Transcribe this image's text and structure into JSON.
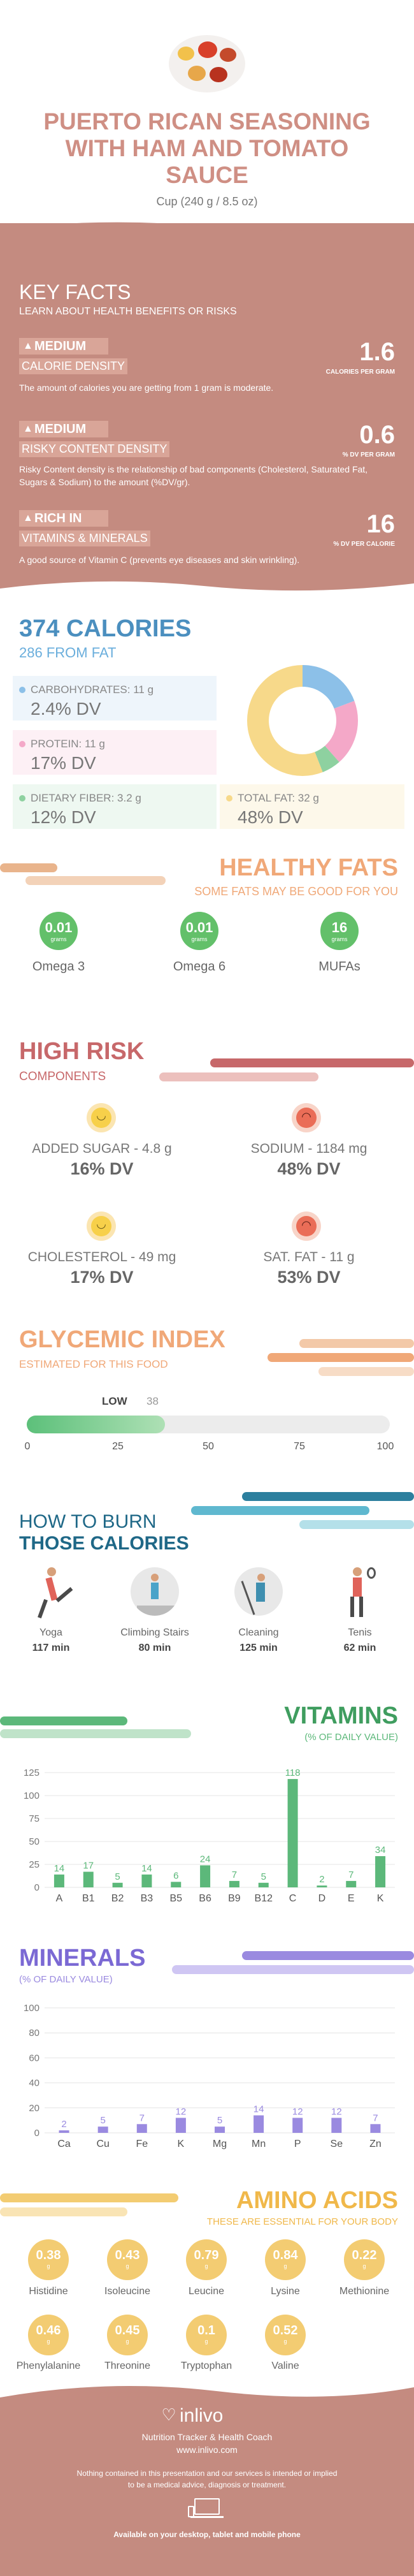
{
  "header": {
    "title_line1": "PUERTO RICAN SEASONING",
    "title_line2": "WITH HAM AND TOMATO",
    "title_line3": "SAUCE",
    "serving": "Cup (240 g / 8.5 oz)"
  },
  "key_facts": {
    "title": "KEY FACTS",
    "subtitle": "LEARN ABOUT HEALTH BENEFITS OR RISKS",
    "items": [
      {
        "level": "MEDIUM",
        "label": "CALORIE DENSITY",
        "value": "1.6",
        "unit": "CALORIES PER GRAM",
        "desc": "The amount of calories you are getting from 1 gram is moderate."
      },
      {
        "level": "MEDIUM",
        "label": "RISKY CONTENT DENSITY",
        "value": "0.6",
        "unit": "% DV PER GRAM",
        "desc": "Risky Content density is the relationship of bad components (Cholesterol, Saturated Fat, Sugars & Sodium) to the amount (%DV/gr)."
      },
      {
        "level": "RICH IN",
        "label": "VITAMINS & MINERALS",
        "value": "16",
        "unit": "% DV PER CALORIE",
        "desc": "A good source of Vitamin C (prevents eye diseases and skin wrinkling)."
      }
    ]
  },
  "calories": {
    "title": "374 CALORIES",
    "subtitle": "286 FROM FAT",
    "carbs_label": "CARBOHYDRATES: 11 g",
    "carbs_dv": "2.4% DV",
    "protein_label": "PROTEIN: 11 g",
    "protein_dv": "17% DV",
    "fiber_label": "DIETARY FIBER: 3.2 g",
    "fiber_dv": "12% DV",
    "fat_label": "TOTAL FAT: 32 g",
    "fat_dv": "48% DV",
    "donut": [
      {
        "name": "carbs",
        "value": 11,
        "color": "#8cc0e8"
      },
      {
        "name": "protein",
        "value": 11,
        "color": "#f4a8c8"
      },
      {
        "name": "fiber",
        "value": 3.2,
        "color": "#8ed1a0"
      },
      {
        "name": "fat",
        "value": 32,
        "color": "#f7d98a"
      }
    ]
  },
  "healthy_fats": {
    "title": "HEALTHY FATS",
    "subtitle": "SOME FATS MAY BE GOOD FOR YOU",
    "items": [
      {
        "value": "0.01",
        "unit": "grams",
        "label": "Omega 3"
      },
      {
        "value": "0.01",
        "unit": "grams",
        "label": "Omega 6"
      },
      {
        "value": "16",
        "unit": "grams",
        "label": "MUFAs"
      }
    ]
  },
  "high_risk": {
    "title": "HIGH RISK",
    "subtitle": "COMPONENTS",
    "items": [
      {
        "label": "ADDED SUGAR - 4.8 g",
        "dv": "16% DV",
        "face": "happy"
      },
      {
        "label": "SODIUM - 1184 mg",
        "dv": "48% DV",
        "face": "sad"
      },
      {
        "label": "CHOLESTEROL - 49 mg",
        "dv": "17% DV",
        "face": "happy"
      },
      {
        "label": "SAT. FAT - 11 g",
        "dv": "53% DV",
        "face": "sad"
      }
    ]
  },
  "glycemic": {
    "title": "GLYCEMIC INDEX",
    "subtitle": "ESTIMATED FOR THIS FOOD",
    "level": "LOW",
    "value": 38,
    "value_text": "38",
    "ticks": [
      "0",
      "25",
      "50",
      "75",
      "100"
    ]
  },
  "burn": {
    "title_line1": "HOW TO BURN",
    "title_line2": "THOSE CALORIES",
    "items": [
      {
        "label": "Yoga",
        "time": "117 min"
      },
      {
        "label": "Climbing Stairs",
        "time": "80 min"
      },
      {
        "label": "Cleaning",
        "time": "125 min"
      },
      {
        "label": "Tenis",
        "time": "62 min"
      }
    ]
  },
  "vitamins": {
    "title": "VITAMINS",
    "subtitle": "(% OF DAILY VALUE)",
    "chart_data": {
      "type": "bar",
      "categories": [
        "A",
        "B1",
        "B2",
        "B3",
        "B5",
        "B6",
        "B9",
        "B12",
        "C",
        "D",
        "E",
        "K"
      ],
      "values": [
        14,
        17,
        5,
        14,
        6,
        24,
        7,
        5,
        118,
        2,
        7,
        34
      ],
      "yticks": [
        "0",
        "25",
        "50",
        "75",
        "100",
        "125"
      ],
      "ylim": [
        0,
        125
      ],
      "color": "#5cb87a"
    }
  },
  "minerals": {
    "title": "MINERALS",
    "subtitle": "(% OF DAILY VALUE)",
    "chart_data": {
      "type": "bar",
      "categories": [
        "Ca",
        "Cu",
        "Fe",
        "K",
        "Mg",
        "Mn",
        "P",
        "Se",
        "Zn"
      ],
      "values": [
        2,
        5,
        7,
        12,
        5,
        14,
        12,
        12,
        7
      ],
      "yticks": [
        "0",
        "20",
        "40",
        "60",
        "80",
        "100"
      ],
      "ylim": [
        0,
        100
      ],
      "color": "#9a8ae0"
    }
  },
  "amino": {
    "title": "AMINO ACIDS",
    "subtitle": "THESE ARE ESSENTIAL FOR YOUR BODY",
    "items": [
      {
        "value": "0.38",
        "unit": "g",
        "label": "Histidine"
      },
      {
        "value": "0.43",
        "unit": "g",
        "label": "Isoleucine"
      },
      {
        "value": "0.79",
        "unit": "g",
        "label": "Leucine"
      },
      {
        "value": "0.84",
        "unit": "g",
        "label": "Lysine"
      },
      {
        "value": "0.22",
        "unit": "g",
        "label": "Methionine"
      },
      {
        "value": "0.46",
        "unit": "g",
        "label": "Phenylalanine"
      },
      {
        "value": "0.45",
        "unit": "g",
        "label": "Threonine"
      },
      {
        "value": "0.1",
        "unit": "g",
        "label": "Tryptophan"
      },
      {
        "value": "0.52",
        "unit": "g",
        "label": "Valine"
      }
    ]
  },
  "footer": {
    "brand": "inlivo",
    "tagline": "Nutrition Tracker & Health Coach",
    "url": "www.inlivo.com",
    "disclaimer_line1": "Nothing contained in this presentation and our services is intended or implied",
    "disclaimer_line2": "to be a medical advice, diagnosis or treatment.",
    "available": "Available on your desktop, tablet and mobile phone"
  }
}
